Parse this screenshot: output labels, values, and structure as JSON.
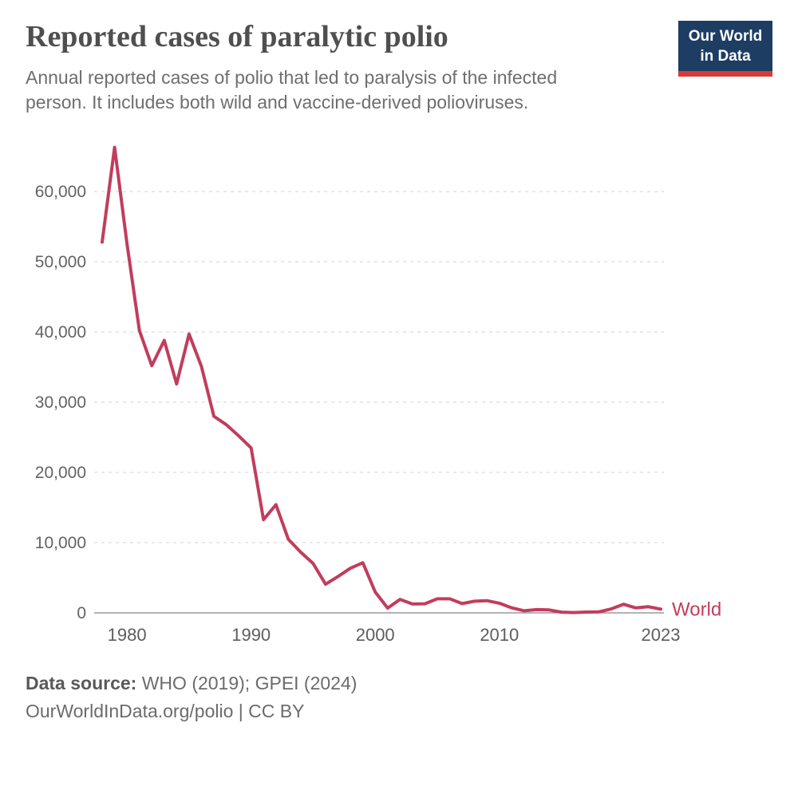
{
  "header": {
    "title": "Reported cases of paralytic polio",
    "subtitle": "Annual reported cases of polio that led to paralysis of the infected person. It includes both wild and vaccine-derived polioviruses.",
    "logo": {
      "line1": "Our World",
      "line2": "in Data",
      "bg_color": "#1d3d63",
      "accent_color": "#d93a35"
    }
  },
  "chart_data": {
    "type": "line",
    "title": "Reported cases of paralytic polio",
    "xlabel": "",
    "ylabel": "",
    "grid": "horizontal-dashed",
    "legend_position": "end-of-line",
    "end_label": "World",
    "xlim": [
      1978,
      2023
    ],
    "ylim": [
      0,
      66300
    ],
    "x_ticks": [
      1980,
      1990,
      2000,
      2010,
      2023
    ],
    "x_tick_labels": [
      "1980",
      "1990",
      "2000",
      "2010",
      "2023"
    ],
    "y_ticks": [
      0,
      10000,
      20000,
      30000,
      40000,
      50000,
      60000
    ],
    "y_tick_labels": [
      "0",
      "10,000",
      "20,000",
      "30,000",
      "40,000",
      "50,000",
      "60,000"
    ],
    "series": [
      {
        "name": "World",
        "color": "#c13d5d",
        "x": [
          1978,
          1979,
          1980,
          1981,
          1982,
          1983,
          1984,
          1985,
          1986,
          1987,
          1988,
          1989,
          1990,
          1991,
          1992,
          1993,
          1994,
          1995,
          1996,
          1997,
          1998,
          1999,
          2000,
          2001,
          2002,
          2003,
          2004,
          2005,
          2006,
          2007,
          2008,
          2009,
          2010,
          2011,
          2012,
          2013,
          2014,
          2015,
          2016,
          2017,
          2018,
          2019,
          2020,
          2021,
          2022,
          2023
        ],
        "values": [
          52800,
          66300,
          52600,
          40200,
          35200,
          38800,
          32600,
          39700,
          35100,
          28000,
          26800,
          25200,
          23484,
          13274,
          15406,
          10487,
          8635,
          7035,
          4074,
          5185,
          6349,
          7141,
          2971,
          683,
          1922,
          1258,
          1300,
          1998,
          1997,
          1315,
          1660,
          1733,
          1377,
          716,
          291,
          463,
          415,
          106,
          42,
          118,
          137,
          554,
          1226,
          704,
          878,
          535
        ]
      }
    ]
  },
  "footer": {
    "source_label": "Data source:",
    "source_text": "WHO (2019); GPEI (2024)",
    "link_line": "OurWorldInData.org/polio | CC BY"
  }
}
